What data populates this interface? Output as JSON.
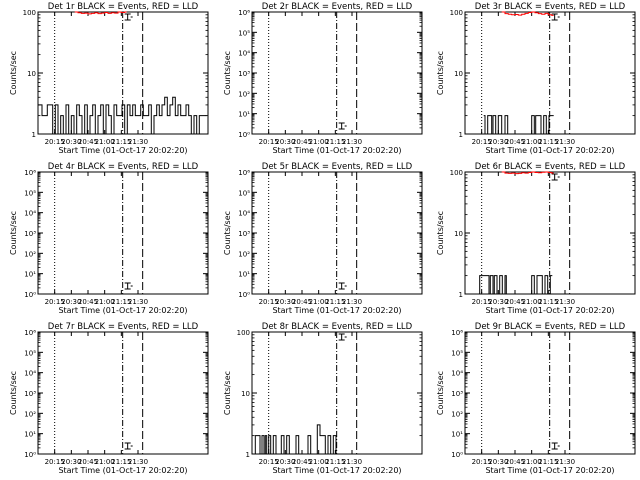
{
  "colors": {
    "events": "#000000",
    "lld": "#ff0000",
    "axes": "#000000"
  },
  "chart_data": [
    {
      "type": "line",
      "scale": "log",
      "ylim": [
        1,
        100
      ],
      "title": "Det 1r BLACK = Events, RED = LLD",
      "xlabel": "Start Time (01-Oct-17 20:02:20)",
      "ylabel": "Counts/sec",
      "xtick_labels": [
        "20:15",
        "20:30",
        "20:45",
        "21:00",
        "21:15",
        "21:30"
      ],
      "ytick_labels": [
        "1",
        "10",
        "100"
      ],
      "series": [
        {
          "role": "events",
          "x": [
            20.0,
            20.06,
            20.1,
            20.14,
            20.18,
            20.22,
            20.26,
            20.3,
            20.34,
            20.38,
            20.42,
            20.46,
            20.5,
            20.54,
            20.58,
            20.62,
            20.66,
            20.7,
            20.74,
            20.78,
            20.82,
            20.86,
            20.9,
            20.94,
            20.98,
            21.02,
            21.06,
            21.1,
            21.14,
            21.18,
            21.22,
            21.26,
            21.3,
            21.34,
            21.38,
            21.42,
            21.46,
            21.5,
            21.54,
            21.58,
            21.62,
            21.66,
            21.7,
            21.74,
            21.78,
            21.82,
            21.86,
            21.9,
            21.94,
            21.98,
            22.02,
            22.06,
            22.1,
            22.14,
            22.18,
            22.22,
            22.26,
            22.3,
            22.34,
            22.38,
            22.42,
            22.46,
            22.5
          ],
          "y": [
            3,
            2,
            2,
            3,
            3,
            1,
            3,
            1,
            2,
            1,
            3,
            1,
            2,
            1,
            3,
            2,
            1,
            3,
            1,
            2,
            3,
            1,
            2,
            3,
            1,
            3,
            2,
            1,
            3,
            2,
            2,
            3,
            1,
            3,
            2,
            3,
            2,
            2,
            3,
            2,
            2,
            3,
            1,
            2,
            3,
            2,
            3,
            4,
            2,
            3,
            4,
            2,
            3,
            2,
            2,
            3,
            2,
            1,
            2,
            1,
            2,
            2,
            2
          ]
        },
        {
          "role": "lld",
          "x": [
            20.55,
            20.6,
            20.65,
            20.7,
            20.75,
            20.8,
            20.85,
            20.9,
            20.95,
            21.0,
            21.05,
            21.1,
            21.15,
            21.2,
            21.25,
            21.3
          ],
          "y": [
            100,
            97,
            95,
            96,
            93,
            95,
            97,
            94,
            96,
            98,
            95,
            97,
            96,
            100,
            98,
            100
          ]
        }
      ],
      "vlines": [
        20.25,
        21.27,
        21.57
      ]
    },
    {
      "type": "line",
      "scale": "log",
      "ylim": [
        1,
        1000000
      ],
      "title": "Det 2r BLACK = Events, RED = LLD",
      "xlabel": "Start Time (01-Oct-17 20:02:20)",
      "ylabel": "Counts/sec",
      "xtick_labels": [
        "20:15",
        "20:30",
        "20:45",
        "21:00",
        "21:15",
        "21:30"
      ],
      "ytick_labels": [
        "10⁰",
        "10¹",
        "10²",
        "10³",
        "10⁴",
        "10⁵",
        "10⁶"
      ],
      "series": [],
      "vlines": [
        20.25,
        21.27,
        21.57
      ]
    },
    {
      "type": "line",
      "scale": "log",
      "ylim": [
        1,
        100
      ],
      "title": "Det 3r BLACK = Events, RED = LLD",
      "xlabel": "Start Time (01-Oct-17 20:02:20)",
      "ylabel": "Counts/sec",
      "xtick_labels": [
        "20:15",
        "20:30",
        "20:45",
        "21:00",
        "21:15",
        "21:30"
      ],
      "ytick_labels": [
        "1",
        "10",
        "100"
      ],
      "series": [
        {
          "role": "events",
          "x": [
            20.28,
            20.3,
            20.34,
            20.36,
            20.4,
            20.42,
            20.46,
            20.5,
            20.55,
            20.6,
            20.64,
            20.68,
            21.0,
            21.04,
            21.06,
            21.1,
            21.14,
            21.18,
            21.22,
            21.26,
            21.3
          ],
          "y": [
            2,
            1,
            2,
            2,
            1,
            2,
            1,
            2,
            1,
            2,
            1,
            1,
            2,
            1,
            2,
            2,
            1,
            2,
            1,
            2,
            2
          ]
        },
        {
          "role": "lld",
          "x": [
            20.55,
            20.6,
            20.65,
            20.7,
            20.75,
            20.8,
            20.85,
            20.9,
            20.95,
            21.0,
            21.05,
            21.1,
            21.15,
            21.2,
            21.25,
            21.3
          ],
          "y": [
            100,
            94,
            92,
            90,
            91,
            89,
            92,
            95,
            98,
            100,
            97,
            94,
            92,
            95,
            90,
            88
          ]
        }
      ],
      "vlines": [
        20.25,
        21.27,
        21.57
      ]
    },
    {
      "type": "line",
      "scale": "log",
      "ylim": [
        1,
        1000000
      ],
      "title": "Det 4r BLACK = Events, RED = LLD",
      "xlabel": "Start Time (01-Oct-17 20:02:20)",
      "ylabel": "Counts/sec",
      "xtick_labels": [
        "20:15",
        "20:30",
        "20:45",
        "21:00",
        "21:15",
        "21:30"
      ],
      "ytick_labels": [
        "10⁰",
        "10¹",
        "10²",
        "10³",
        "10⁴",
        "10⁵",
        "10⁶"
      ],
      "series": [],
      "vlines": [
        20.25,
        21.27,
        21.57
      ]
    },
    {
      "type": "line",
      "scale": "log",
      "ylim": [
        1,
        1000000
      ],
      "title": "Det 5r BLACK = Events, RED = LLD",
      "xlabel": "Start Time (01-Oct-17 20:02:20)",
      "ylabel": "Counts/sec",
      "xtick_labels": [
        "20:15",
        "20:30",
        "20:45",
        "21:00",
        "21:15",
        "21:30"
      ],
      "ytick_labels": [
        "10⁰",
        "10¹",
        "10²",
        "10³",
        "10⁴",
        "10⁵",
        "10⁶"
      ],
      "series": [],
      "vlines": [
        20.25,
        21.27,
        21.57
      ]
    },
    {
      "type": "line",
      "scale": "log",
      "ylim": [
        1,
        100
      ],
      "title": "Det 6r BLACK = Events, RED = LLD",
      "xlabel": "Start Time (01-Oct-17 20:02:20)",
      "ylabel": "Counts/sec",
      "xtick_labels": [
        "20:15",
        "20:30",
        "20:45",
        "21:00",
        "21:15",
        "21:30"
      ],
      "ytick_labels": [
        "1",
        "10",
        "100"
      ],
      "series": [
        {
          "role": "events",
          "x": [
            20.2,
            20.22,
            20.36,
            20.38,
            20.42,
            20.44,
            20.48,
            20.52,
            20.56,
            20.6,
            20.62,
            21.0,
            21.04,
            21.08,
            21.12,
            21.16,
            21.2,
            21.24,
            21.28
          ],
          "y": [
            1,
            2,
            1,
            2,
            1,
            2,
            1,
            2,
            1,
            2,
            1,
            2,
            1,
            2,
            2,
            1,
            2,
            1,
            2
          ]
        },
        {
          "role": "lld",
          "x": [
            20.55,
            20.6,
            20.65,
            20.7,
            20.75,
            20.8,
            20.85,
            20.9,
            20.95,
            21.0,
            21.05,
            21.1,
            21.15,
            21.2,
            21.25,
            21.3
          ],
          "y": [
            100,
            96,
            95,
            96,
            94,
            95,
            97,
            96,
            98,
            100,
            98,
            97,
            99,
            100,
            98,
            96
          ]
        }
      ],
      "vlines": [
        20.25,
        21.27,
        21.57
      ]
    },
    {
      "type": "line",
      "scale": "log",
      "ylim": [
        1,
        1000000
      ],
      "title": "Det 7r BLACK = Events, RED = LLD",
      "xlabel": "Start Time (01-Oct-17 20:02:20)",
      "ylabel": "Counts/sec",
      "xtick_labels": [
        "20:15",
        "20:30",
        "20:45",
        "21:00",
        "21:15",
        "21:30"
      ],
      "ytick_labels": [
        "10⁰",
        "10¹",
        "10²",
        "10³",
        "10⁴",
        "10⁵",
        "10⁶"
      ],
      "series": [],
      "vlines": [
        20.25,
        21.27,
        21.57
      ]
    },
    {
      "type": "line",
      "scale": "log",
      "ylim": [
        1,
        100
      ],
      "title": "Det 8r BLACK = Events, RED = LLD",
      "xlabel": "Start Time (01-Oct-17 20:02:20)",
      "ylabel": "Counts/sec",
      "xtick_labels": [
        "20:15",
        "20:30",
        "20:45",
        "21:00",
        "21:15",
        "21:30"
      ],
      "ytick_labels": [
        "1",
        "10",
        "100"
      ],
      "series": [
        {
          "role": "events",
          "x": [
            20.0,
            20.05,
            20.1,
            20.12,
            20.15,
            20.18,
            20.2,
            20.22,
            20.25,
            20.28,
            20.32,
            20.36,
            20.4,
            20.44,
            20.48,
            20.52,
            20.56,
            20.62,
            20.66,
            20.7,
            20.74,
            20.8,
            20.84,
            20.88,
            20.92,
            20.98,
            21.02,
            21.1,
            21.14,
            21.18,
            21.22,
            21.26
          ],
          "y": [
            1,
            2,
            2,
            1,
            2,
            1,
            2,
            1,
            2,
            1,
            2,
            1,
            1,
            2,
            1,
            2,
            1,
            1,
            2,
            1,
            1,
            1,
            2,
            1,
            1,
            3,
            2,
            1,
            2,
            1,
            2,
            1
          ]
        }
      ],
      "vlines": [
        20.25,
        21.27,
        21.57
      ]
    },
    {
      "type": "line",
      "scale": "log",
      "ylim": [
        1,
        1000000
      ],
      "title": "Det 9r BLACK = Events, RED = LLD",
      "xlabel": "Start Time (01-Oct-17 20:02:20)",
      "ylabel": "Counts/sec",
      "xtick_labels": [
        "20:15",
        "20:30",
        "20:45",
        "21:00",
        "21:15",
        "21:30"
      ],
      "ytick_labels": [
        "10⁰",
        "10¹",
        "10²",
        "10³",
        "10⁴",
        "10⁵",
        "10⁶"
      ],
      "series": [],
      "vlines": [
        20.25,
        21.27,
        21.57
      ]
    }
  ]
}
